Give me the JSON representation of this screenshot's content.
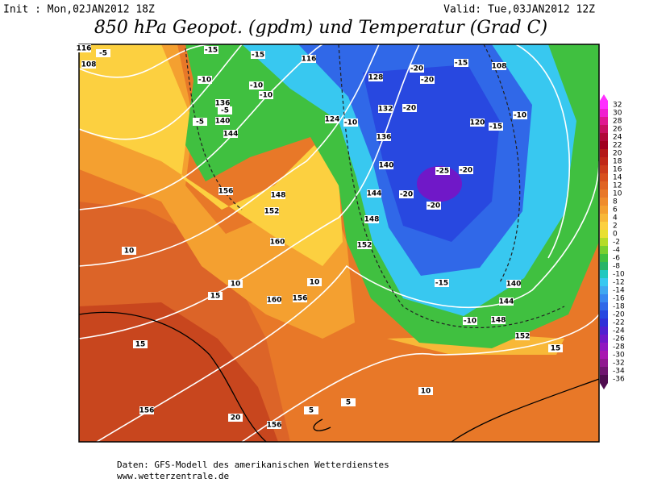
{
  "header": {
    "init": "Init : Mon,02JAN2012 18Z",
    "valid": "Valid: Tue,03JAN2012 12Z",
    "title": "850 hPa Geopot. (gpdm) und Temperatur (Grad C)"
  },
  "footer": {
    "source": "Daten: GFS-Modell des amerikanischen Wetterdienstes",
    "site": "www.wetterzentrale.de"
  },
  "colorbar": {
    "labels": [
      32,
      30,
      28,
      26,
      24,
      22,
      20,
      18,
      16,
      14,
      12,
      10,
      8,
      6,
      4,
      2,
      0,
      -2,
      -4,
      -6,
      -8,
      -10,
      -12,
      -14,
      -16,
      -18,
      -20,
      -22,
      -24,
      -26,
      -28,
      -30,
      -32,
      -34,
      -36
    ],
    "colors": [
      "#ff30ff",
      "#f020d0",
      "#e01890",
      "#c81060",
      "#b00838",
      "#a00020",
      "#b41818",
      "#c02818",
      "#cc3c1c",
      "#d8501e",
      "#e06424",
      "#e87828",
      "#ef8c2c",
      "#f4a030",
      "#f8b838",
      "#fcd040",
      "#e8e030",
      "#b4dc28",
      "#78d030",
      "#40c040",
      "#28b468",
      "#20c8c0",
      "#38c8f0",
      "#40a8f0",
      "#3888f0",
      "#3068e8",
      "#2848e0",
      "#3030d8",
      "#5020d0",
      "#7018c8",
      "#9018c0",
      "#a818b0",
      "#901890",
      "#701470",
      "#500c50"
    ]
  },
  "map": {
    "contour_labels": [
      "116",
      "108",
      "-5",
      "-15",
      "-15",
      "116",
      "128",
      "-20",
      "-20",
      "-15",
      "108",
      "-10",
      "-10",
      "-10",
      "136",
      "-5",
      "140",
      "-5",
      "144",
      "124",
      "-10",
      "132",
      "-20",
      "120",
      "-15",
      "-10",
      "136",
      "140",
      "-25",
      "-20",
      "144",
      "-20",
      "-20",
      "148",
      "156",
      "148",
      "152",
      "160",
      "152",
      "10",
      "10",
      "15",
      "10",
      "160",
      "156",
      "-15",
      "140",
      "144",
      "148",
      "-10",
      "152",
      "15",
      "15",
      "10",
      "156",
      "20",
      "156",
      "5",
      "5"
    ]
  }
}
